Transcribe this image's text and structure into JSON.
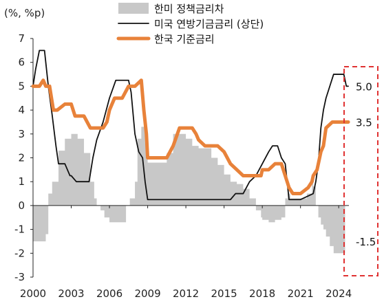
{
  "chart_data": {
    "type": "line",
    "unit_label": "(%, %p)",
    "xlim": [
      2000,
      2024.8
    ],
    "ylim": [
      -3,
      7
    ],
    "x_ticks": [
      2000,
      2003,
      2006,
      2009,
      2012,
      2015,
      2018,
      2021,
      2024
    ],
    "y_ticks": [
      7,
      6,
      5,
      4,
      3,
      2,
      1,
      0,
      -1,
      -2,
      -3
    ],
    "legend_position": "top",
    "series": [
      {
        "name": "한미 정책금리차",
        "kind": "area",
        "color": "#c8c8c8",
        "x": [
          2000.0,
          2000.5,
          2001.0,
          2001.2,
          2001.5,
          2002.0,
          2002.5,
          2003.0,
          2003.5,
          2003.8,
          2004.0,
          2004.5,
          2004.8,
          2005.0,
          2005.3,
          2005.6,
          2006.0,
          2006.5,
          2007.0,
          2007.3,
          2007.6,
          2008.0,
          2008.2,
          2008.5,
          2008.8,
          2009.0,
          2010.0,
          2010.5,
          2011.0,
          2011.5,
          2012.0,
          2012.5,
          2013.0,
          2014.0,
          2014.5,
          2015.0,
          2015.5,
          2016.0,
          2016.5,
          2017.0,
          2017.5,
          2017.9,
          2018.0,
          2018.5,
          2019.0,
          2019.5,
          2019.8,
          2020.0,
          2020.2,
          2021.0,
          2021.5,
          2021.9,
          2022.0,
          2022.2,
          2022.4,
          2022.6,
          2022.8,
          2023.0,
          2023.3,
          2023.6,
          2024.0,
          2024.5
        ],
        "y": [
          -1.5,
          -1.5,
          -1.2,
          0.5,
          1.0,
          2.3,
          2.8,
          3.0,
          2.8,
          2.8,
          2.2,
          1.0,
          0.3,
          0.0,
          -0.2,
          -0.5,
          -0.7,
          -0.7,
          -0.7,
          0.0,
          0.3,
          1.0,
          2.8,
          3.3,
          2.6,
          1.8,
          1.8,
          2.2,
          3.0,
          3.0,
          2.8,
          2.5,
          2.4,
          2.0,
          1.7,
          1.3,
          1.0,
          0.9,
          0.7,
          0.3,
          -0.2,
          -0.5,
          -0.6,
          -0.7,
          -0.6,
          -0.5,
          0.3,
          0.5,
          0.3,
          0.3,
          0.5,
          1.0,
          0.8,
          0.0,
          -0.5,
          -0.8,
          -1.0,
          -1.3,
          -1.7,
          -2.0,
          -2.0,
          -1.5
        ]
      },
      {
        "name": "미국 연방기금금리 (상단)",
        "kind": "line",
        "color": "#111111",
        "x": [
          2000.0,
          2000.2,
          2000.5,
          2000.9,
          2001.2,
          2001.5,
          2001.8,
          2002.0,
          2002.5,
          2002.9,
          2003.0,
          2003.4,
          2003.5,
          2004.0,
          2004.4,
          2004.7,
          2005.0,
          2005.5,
          2006.0,
          2006.5,
          2007.0,
          2007.5,
          2007.7,
          2008.0,
          2008.3,
          2008.6,
          2008.8,
          2009.0,
          2010.0,
          2012.0,
          2014.0,
          2015.5,
          2015.9,
          2016.5,
          2017.0,
          2017.5,
          2018.0,
          2018.5,
          2018.8,
          2019.2,
          2019.5,
          2019.8,
          2020.1,
          2020.25,
          2021.0,
          2022.0,
          2022.2,
          2022.4,
          2022.6,
          2022.8,
          2023.0,
          2023.3,
          2023.6,
          2024.0,
          2024.4,
          2024.6,
          2024.75
        ],
        "y": [
          5.0,
          5.7,
          6.5,
          6.5,
          5.0,
          3.8,
          2.5,
          1.75,
          1.75,
          1.25,
          1.25,
          1.0,
          1.0,
          1.0,
          1.0,
          2.0,
          2.75,
          3.5,
          4.5,
          5.25,
          5.25,
          5.25,
          4.75,
          3.0,
          2.25,
          2.0,
          1.0,
          0.25,
          0.25,
          0.25,
          0.25,
          0.25,
          0.5,
          0.5,
          1.0,
          1.25,
          1.75,
          2.25,
          2.5,
          2.5,
          2.0,
          1.75,
          0.25,
          0.25,
          0.25,
          0.5,
          1.0,
          1.75,
          3.25,
          4.0,
          4.5,
          5.0,
          5.5,
          5.5,
          5.5,
          5.0,
          5.0
        ]
      },
      {
        "name": "한국 기준금리",
        "kind": "line",
        "color": "#e8823a",
        "x": [
          2000.0,
          2000.5,
          2000.8,
          2001.0,
          2001.3,
          2001.6,
          2001.9,
          2002.5,
          2003.0,
          2003.3,
          2004.0,
          2004.5,
          2004.8,
          2005.0,
          2005.5,
          2005.8,
          2006.0,
          2006.4,
          2006.8,
          2007.0,
          2007.5,
          2007.7,
          2008.0,
          2008.5,
          2008.7,
          2008.9,
          2009.0,
          2009.5,
          2010.0,
          2010.5,
          2011.0,
          2011.5,
          2012.0,
          2012.5,
          2012.8,
          2013.0,
          2013.5,
          2014.0,
          2014.5,
          2015.0,
          2015.5,
          2016.0,
          2016.5,
          2017.0,
          2017.9,
          2018.0,
          2018.5,
          2019.0,
          2019.5,
          2019.8,
          2020.1,
          2020.4,
          2021.0,
          2021.6,
          2021.9,
          2022.0,
          2022.3,
          2022.6,
          2022.8,
          2023.0,
          2023.5,
          2024.0,
          2024.5,
          2024.75
        ],
        "y": [
          5.0,
          5.0,
          5.25,
          5.0,
          5.0,
          4.0,
          4.0,
          4.25,
          4.25,
          3.75,
          3.75,
          3.25,
          3.25,
          3.25,
          3.25,
          3.5,
          4.0,
          4.5,
          4.5,
          4.5,
          5.0,
          5.0,
          5.0,
          5.25,
          4.0,
          3.0,
          2.0,
          2.0,
          2.0,
          2.0,
          2.5,
          3.25,
          3.25,
          3.25,
          3.0,
          2.75,
          2.5,
          2.5,
          2.5,
          2.25,
          1.75,
          1.5,
          1.25,
          1.25,
          1.25,
          1.5,
          1.5,
          1.75,
          1.75,
          1.25,
          0.75,
          0.5,
          0.5,
          0.75,
          1.0,
          1.25,
          1.5,
          2.25,
          2.5,
          3.25,
          3.5,
          3.5,
          3.5,
          3.5
        ]
      }
    ],
    "end_labels": [
      {
        "text": "5.0",
        "value": 5.0
      },
      {
        "text": "3.5",
        "value": 3.5
      },
      {
        "text": "-1.5",
        "value": -1.5
      }
    ]
  }
}
